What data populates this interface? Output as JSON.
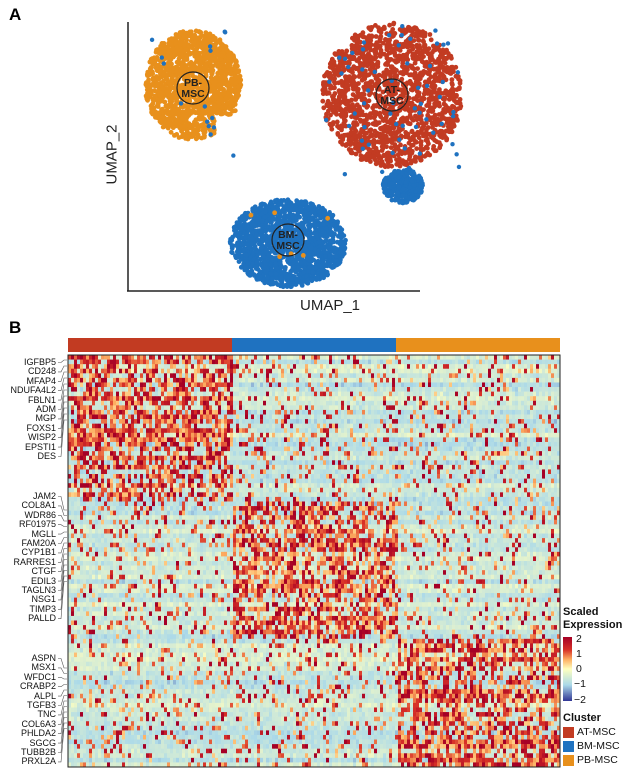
{
  "panel_a": {
    "label": "A"
  },
  "panel_b": {
    "label": "B"
  },
  "chart_data": [
    {
      "type": "scatter",
      "xlabel": "UMAP_1",
      "ylabel": "UMAP_2",
      "clusters": [
        {
          "name": "PB-MSC",
          "label": "PB-\nMSC",
          "label_lines": [
            "PB-",
            "MSC"
          ],
          "color": "#E8901C",
          "position": "top-left"
        },
        {
          "name": "AT-MSC",
          "label_lines": [
            "AT-",
            "MSC"
          ],
          "color": "#C23B22",
          "position": "top-right"
        },
        {
          "name": "BM-MSC",
          "label_lines": [
            "BM-",
            "MSC"
          ],
          "color": "#1F72C0",
          "position": "bottom-center"
        }
      ],
      "grid": false
    },
    {
      "type": "heatmap",
      "column_groups": [
        "AT-MSC",
        "BM-MSC",
        "PB-MSC"
      ],
      "column_group_colors": [
        "#C23B22",
        "#1F72C0",
        "#E8901C"
      ],
      "gene_groups": [
        [
          "IGFBP5",
          "CD248",
          "MFAP4",
          "NDUFA4L2",
          "FBLN1",
          "ADM",
          "MGP",
          "FOXS1",
          "WISP2",
          "EPSTI1",
          "DES"
        ],
        [
          "JAM2",
          "COL8A1",
          "WDR86",
          "RF01975",
          "MGLL",
          "FAM20A",
          "CYP1B1",
          "RARRES1",
          "CTGF",
          "EDIL3",
          "TAGLN3",
          "NSG1",
          "TIMP3",
          "PALLD"
        ],
        [
          "ASPN",
          "MSX1",
          "WFDC1",
          "CRABP2",
          "ALPL",
          "TGFB3",
          "TNC",
          "COL6A3",
          "PHLDA2",
          "SGCG",
          "TUBB2B",
          "PRXL2A"
        ]
      ],
      "high_expression_group": [
        "AT-MSC",
        "BM-MSC",
        "PB-MSC"
      ],
      "color_range": [
        -2,
        2
      ],
      "colorscale": [
        "#313695",
        "#abd9e9",
        "#ffffbf",
        "#fdae61",
        "#d73027",
        "#a50026"
      ],
      "legend": {
        "title_lines": [
          "Scaled",
          "Expression"
        ],
        "ticks": [
          "2",
          "1",
          "0",
          "−1",
          "−2"
        ],
        "cluster_title": "Cluster",
        "cluster_items": [
          "AT-MSC",
          "BM-MSC",
          "PB-MSC"
        ]
      }
    }
  ]
}
